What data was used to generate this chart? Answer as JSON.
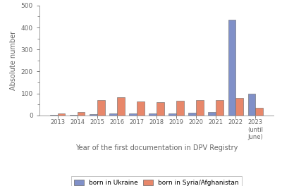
{
  "years": [
    "2013",
    "2014",
    "2015",
    "2016",
    "2017",
    "2018",
    "2019",
    "2020",
    "2021",
    "2022",
    "2023\n(until\nJune)"
  ],
  "ukraine": [
    1,
    1,
    5,
    7,
    7,
    7,
    10,
    13,
    15,
    435,
    100
  ],
  "syria": [
    10,
    15,
    68,
    82,
    62,
    60,
    65,
    70,
    70,
    80,
    33
  ],
  "ukraine_color": "#8090c8",
  "syria_color": "#e8876a",
  "ylabel": "Absolute number",
  "xlabel": "Year of the first documentation in DPV Registry",
  "ylim": [
    0,
    500
  ],
  "yticks": [
    0,
    100,
    200,
    300,
    400,
    500
  ],
  "legend_ukraine": "born in Ukraine",
  "legend_syria": "born in Syria/Afghanistan",
  "bar_width": 0.38,
  "background_color": "#ffffff",
  "edge_color": "#666666",
  "spine_color": "#999999",
  "tick_color": "#666666"
}
